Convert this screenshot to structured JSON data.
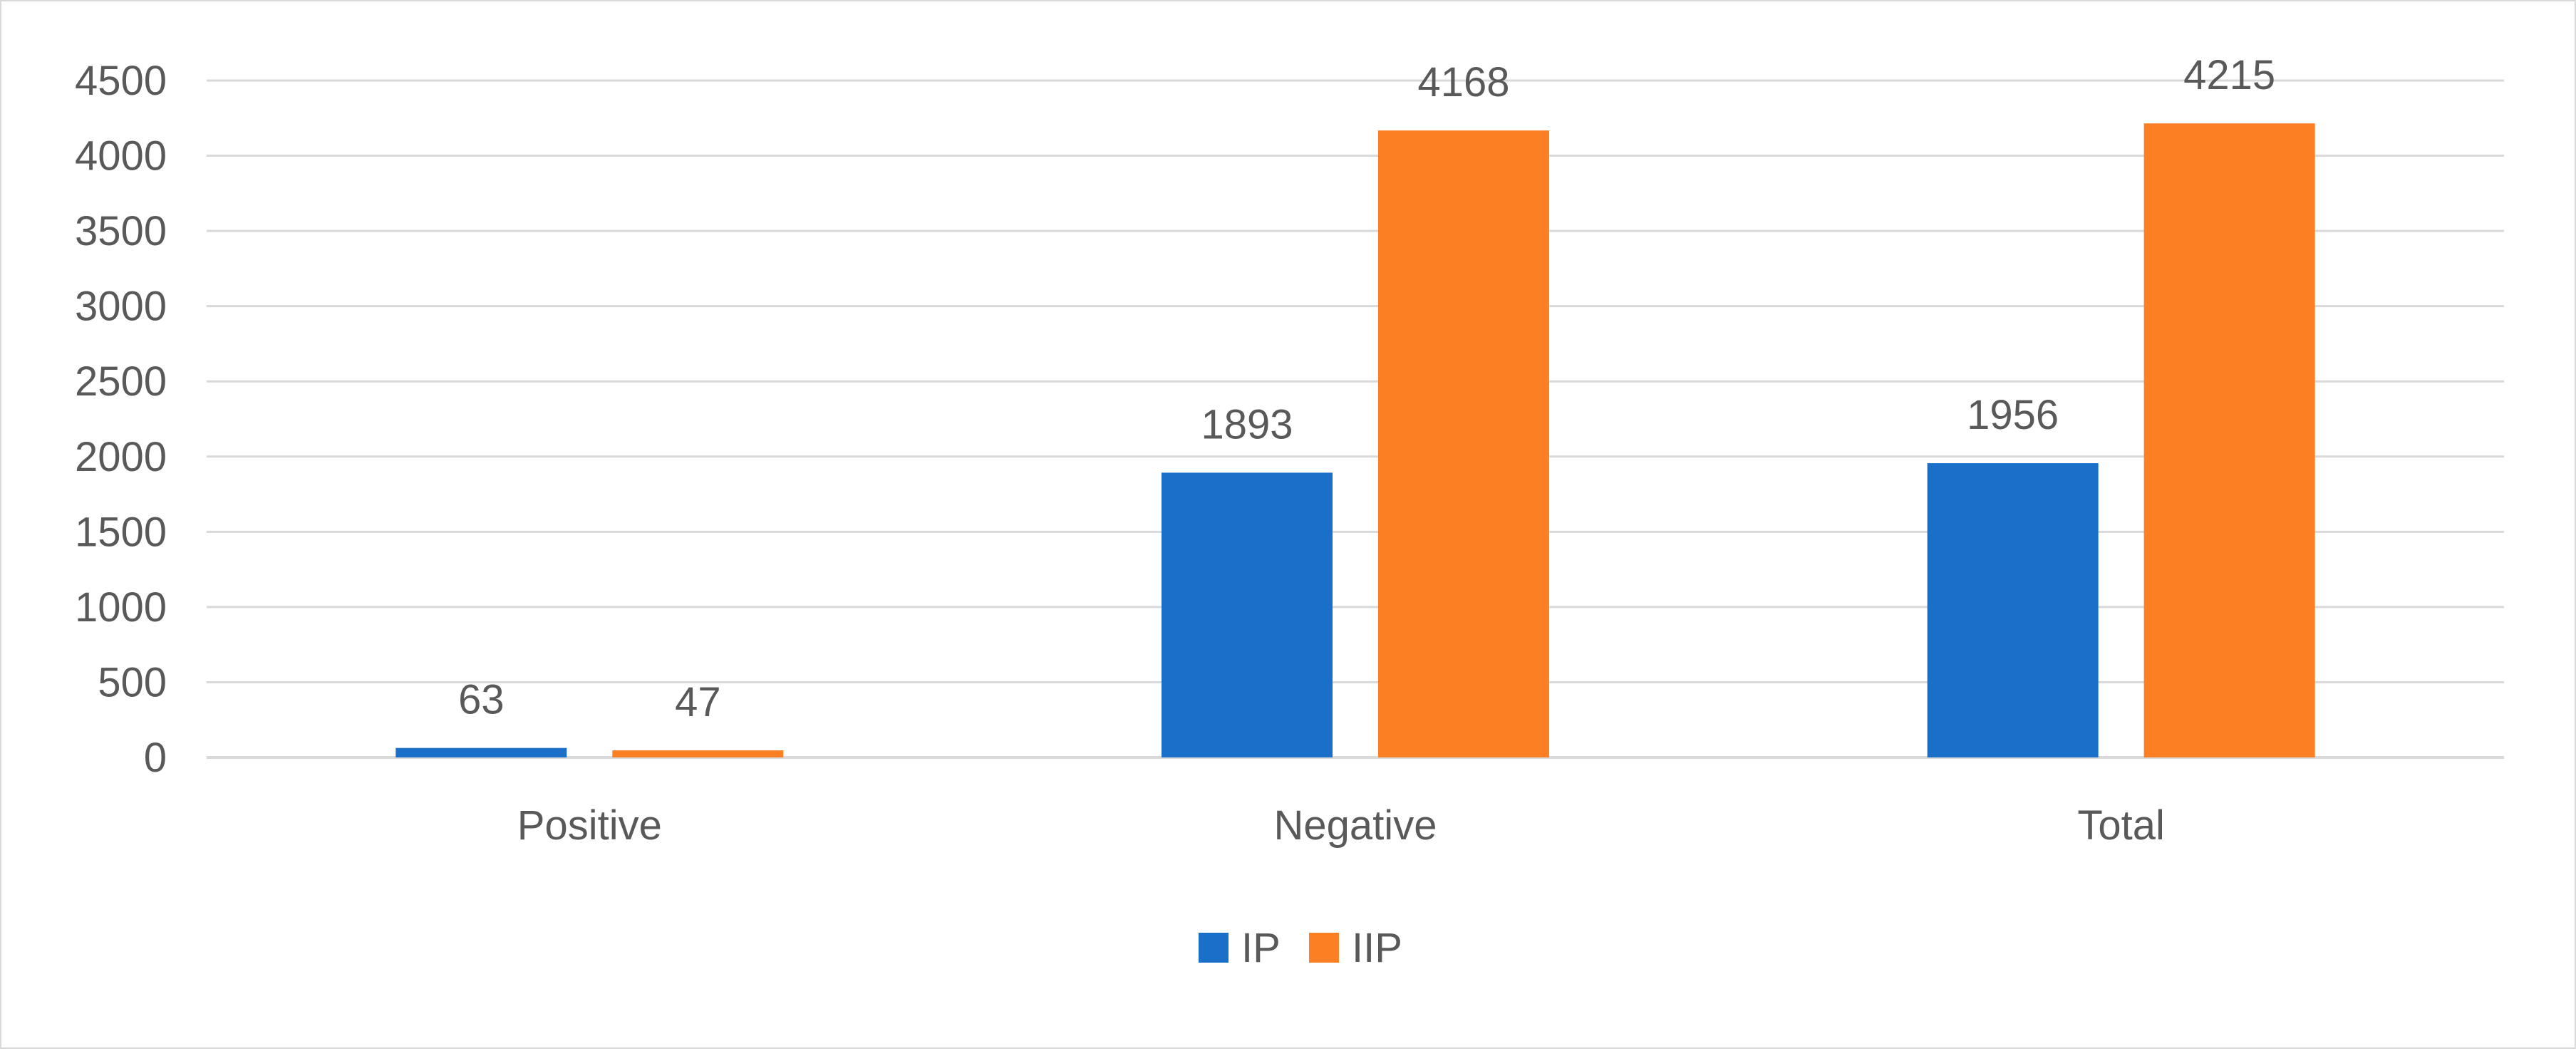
{
  "chart_data": {
    "type": "bar",
    "title": "",
    "xlabel": "",
    "ylabel": "",
    "categories": [
      "Positive",
      "Negative",
      "Total"
    ],
    "series": [
      {
        "name": "IP",
        "color": "#1a70c8",
        "values": [
          63,
          1893,
          1956
        ]
      },
      {
        "name": "IIP",
        "color": "#fd7f23",
        "values": [
          47,
          4168,
          4215
        ]
      }
    ],
    "ylim": [
      0,
      4500
    ],
    "yticks": [
      0,
      500,
      1000,
      1500,
      2000,
      2500,
      3000,
      3500,
      4000,
      4500
    ],
    "grid": true,
    "legend": "bottom-center",
    "data_labels": true
  }
}
